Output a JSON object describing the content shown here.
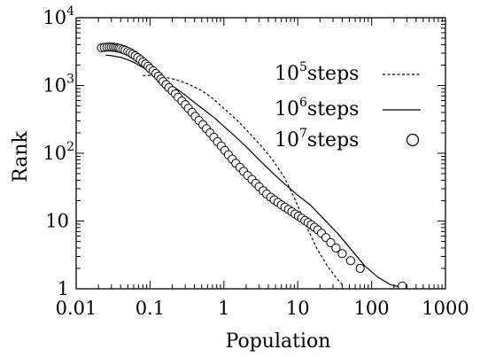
{
  "chart_data": {
    "type": "scatter",
    "title": "",
    "xlabel": "Population",
    "ylabel": "Rank",
    "xscale": "log",
    "yscale": "log",
    "xlim": [
      0.01,
      1000
    ],
    "ylim": [
      1,
      10000
    ],
    "grid": false,
    "legend_position": "top-right",
    "x_ticks": [
      {
        "value": 0.01,
        "label": "0.01"
      },
      {
        "value": 0.1,
        "label": "0.1"
      },
      {
        "value": 1,
        "label": "1"
      },
      {
        "value": 10,
        "label": "10"
      },
      {
        "value": 100,
        "label": "100"
      },
      {
        "value": 1000,
        "label": "1000"
      }
    ],
    "y_ticks": [
      {
        "value": 1,
        "base": "1",
        "exp": ""
      },
      {
        "value": 10,
        "base": "10",
        "exp": ""
      },
      {
        "value": 100,
        "base": "10",
        "exp": "2"
      },
      {
        "value": 1000,
        "base": "10",
        "exp": "3"
      },
      {
        "value": 10000,
        "base": "10",
        "exp": "4"
      }
    ],
    "series": [
      {
        "name": "10^5steps",
        "label_base": "10",
        "label_exp": "5",
        "label_suffix": "steps",
        "style": "dashed",
        "color": "#000000",
        "x": [
          0.08,
          0.1,
          0.13,
          0.18,
          0.25,
          0.35,
          0.5,
          0.7,
          1.0,
          1.5,
          2.2,
          3.2,
          4.5,
          6.5,
          9.0,
          13,
          18,
          25,
          35,
          42
        ],
        "y": [
          1400,
          1410,
          1360,
          1290,
          1180,
          1020,
          840,
          650,
          460,
          310,
          200,
          128,
          82,
          45,
          22,
          8.5,
          4.0,
          2.2,
          1.35,
          1.1
        ]
      },
      {
        "name": "10^6steps",
        "label_base": "10",
        "label_exp": "6",
        "label_suffix": "steps",
        "style": "solid",
        "color": "#000000",
        "x": [
          0.025,
          0.03,
          0.04,
          0.05,
          0.06,
          0.07,
          0.08,
          0.1,
          0.13,
          0.17,
          0.22,
          0.3,
          0.4,
          0.55,
          0.75,
          1.0,
          1.4,
          2.0,
          3.0,
          4.5,
          6.5,
          10,
          15,
          22,
          35,
          55,
          80,
          120,
          180,
          250
        ],
        "y": [
          2800,
          2750,
          2600,
          2400,
          2200,
          2000,
          1850,
          1600,
          1350,
          1120,
          920,
          720,
          560,
          430,
          330,
          250,
          180,
          125,
          80,
          52,
          36,
          24,
          17,
          11,
          6.5,
          3.6,
          2.2,
          1.5,
          1.15,
          1.05
        ]
      },
      {
        "name": "10^7steps",
        "label_base": "10",
        "label_exp": "7",
        "label_suffix": "steps",
        "style": "open-circle",
        "color": "#000000",
        "x": [
          0.022,
          0.024,
          0.026,
          0.028,
          0.03,
          0.032,
          0.034,
          0.036,
          0.038,
          0.04,
          0.043,
          0.046,
          0.05,
          0.054,
          0.058,
          0.063,
          0.068,
          0.074,
          0.08,
          0.087,
          0.094,
          0.1,
          0.11,
          0.12,
          0.13,
          0.14,
          0.15,
          0.165,
          0.18,
          0.2,
          0.22,
          0.24,
          0.27,
          0.3,
          0.33,
          0.37,
          0.41,
          0.46,
          0.52,
          0.58,
          0.65,
          0.73,
          0.82,
          0.92,
          1.03,
          1.15,
          1.3,
          1.45,
          1.65,
          1.85,
          2.1,
          2.4,
          2.7,
          3.0,
          3.4,
          3.8,
          4.3,
          4.8,
          5.4,
          6.0,
          6.7,
          7.5,
          8.3,
          9.2,
          10.2,
          11.3,
          12.5,
          13.8,
          15.2,
          16.8,
          18.6,
          21,
          24,
          28,
          33,
          40,
          52,
          70,
          260
        ],
        "y": [
          3600,
          3650,
          3680,
          3690,
          3680,
          3660,
          3630,
          3590,
          3540,
          3480,
          3400,
          3300,
          3180,
          3050,
          2900,
          2740,
          2570,
          2400,
          2230,
          2070,
          1920,
          1780,
          1640,
          1500,
          1370,
          1250,
          1140,
          1030,
          930,
          840,
          750,
          670,
          590,
          520,
          460,
          400,
          350,
          305,
          265,
          230,
          200,
          172,
          148,
          128,
          110,
          95,
          82,
          71,
          62,
          54,
          47,
          41,
          36,
          32,
          28,
          25,
          22.5,
          20.5,
          18.8,
          17.3,
          16,
          14.8,
          13.7,
          12.7,
          11.8,
          11,
          10.2,
          9.5,
          8.8,
          8.1,
          7.4,
          6.6,
          5.7,
          4.8,
          4.0,
          3.3,
          2.6,
          2.0,
          1.1
        ]
      }
    ]
  }
}
